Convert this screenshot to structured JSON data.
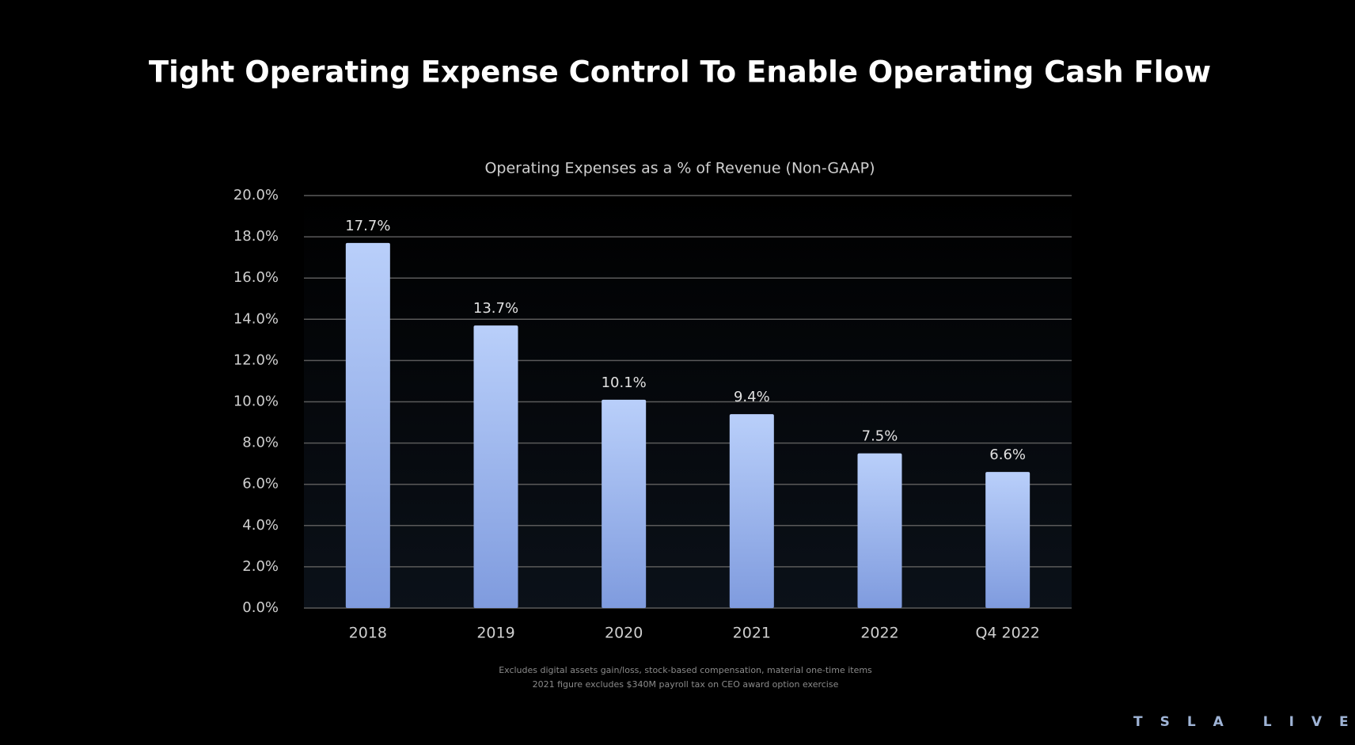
{
  "chart_data": {
    "type": "bar",
    "title": "Tight Operating Expense Control To Enable Operating Cash Flow",
    "subtitle": "Operating Expenses as a % of Revenue (Non-GAAP)",
    "categories": [
      "2018",
      "2019",
      "2020",
      "2021",
      "2022",
      "Q4 2022"
    ],
    "values": [
      17.7,
      13.7,
      10.1,
      9.4,
      7.5,
      6.6
    ],
    "value_labels": [
      "17.7%",
      "13.7%",
      "10.1%",
      "9.4%",
      "7.5%",
      "6.6%"
    ],
    "color": "#b9cffa",
    "ylim": [
      0,
      20
    ],
    "yticks": [
      {
        "value": 0,
        "label": "0.0%"
      },
      {
        "value": 2,
        "label": "2.0%"
      },
      {
        "value": 4,
        "label": "4.0%"
      },
      {
        "value": 6,
        "label": "6.0%"
      },
      {
        "value": 8,
        "label": "8.0%"
      },
      {
        "value": 10,
        "label": "10.0%"
      },
      {
        "value": 12,
        "label": "12.0%"
      },
      {
        "value": 14,
        "label": "14.0%"
      },
      {
        "value": 16,
        "label": "16.0%"
      },
      {
        "value": 18,
        "label": "18.0%"
      },
      {
        "value": 20,
        "label": "20.0%"
      }
    ],
    "grid": true,
    "footnotes": [
      "Excludes digital assets gain/loss, stock-based compensation, material one-time items",
      "2021 figure excludes $340M payroll tax on CEO award option exercise"
    ],
    "logo": "TSLA LIVE"
  }
}
